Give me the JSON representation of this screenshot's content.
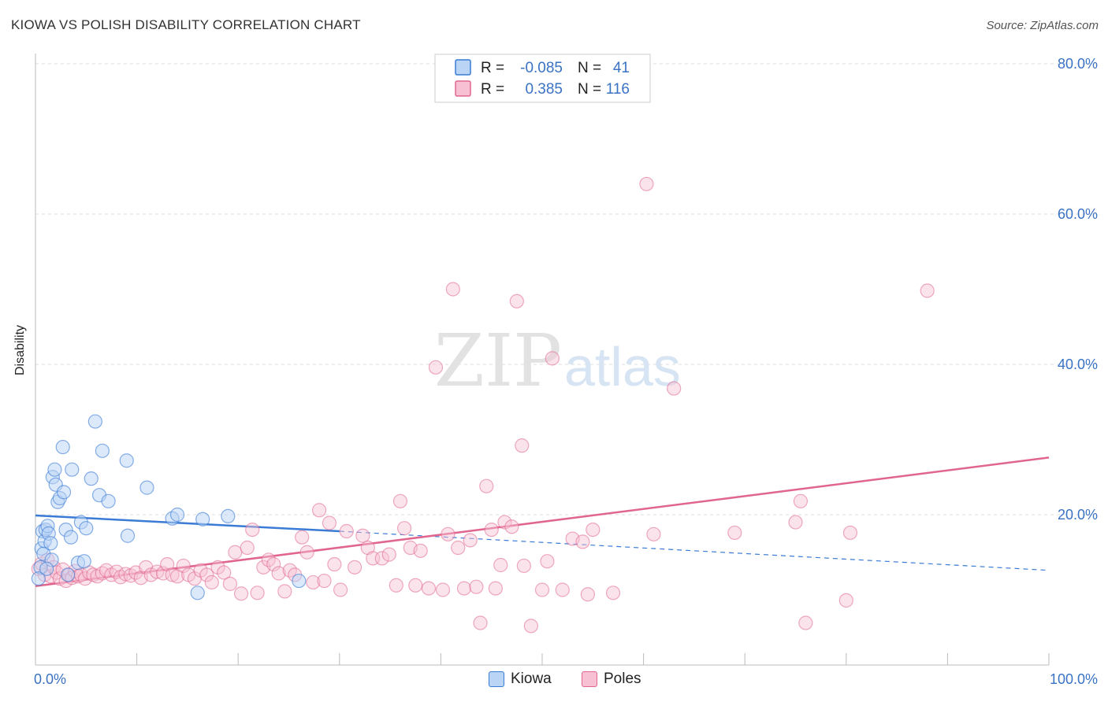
{
  "title": "KIOWA VS POLISH DISABILITY CORRELATION CHART",
  "source": "Source: ZipAtlas.com",
  "watermark": {
    "zip": "ZIP",
    "atlas": "atlas"
  },
  "colors": {
    "kiowa": "#3a7bd5",
    "kiowa_fill": "#b9d4f5",
    "poles": "#e0668f",
    "poles_fill": "#f7c1d3",
    "tick": "#3a72c4",
    "grid": "#dddddd"
  },
  "legend": {
    "rows": [
      {
        "series": "Kiowa",
        "r_label": "R =",
        "r_value": "-0.085",
        "n_label": "N =",
        "n_value": "41"
      },
      {
        "series": "Poles",
        "r_label": "R =",
        "r_value": "0.385",
        "n_label": "N =",
        "n_value": "116"
      }
    ]
  },
  "chart_data": {
    "type": "scatter",
    "title": "KIOWA VS POLISH DISABILITY CORRELATION CHART",
    "xlabel": "",
    "ylabel": "Disability",
    "xlim": [
      0,
      100
    ],
    "ylim": [
      0,
      80
    ],
    "x_tick_labels": [
      "0.0%",
      "100.0%"
    ],
    "y_ticks": [
      20,
      40,
      60,
      80
    ],
    "y_tick_labels": [
      "20.0%",
      "40.0%",
      "60.0%",
      "80.0%"
    ],
    "grid": true,
    "legend_position": "top-center",
    "series": [
      {
        "name": "Kiowa",
        "r": -0.085,
        "n": 41,
        "trend_solid": {
          "x": [
            0,
            30
          ],
          "y": [
            19.9,
            17.8
          ]
        },
        "trend_dashed": {
          "x": [
            30,
            100
          ],
          "y": [
            17.8,
            12.6
          ]
        },
        "points": [
          [
            0.5,
            13.0
          ],
          [
            0.6,
            15.5
          ],
          [
            0.7,
            17.8
          ],
          [
            0.8,
            14.8
          ],
          [
            0.9,
            16.5
          ],
          [
            1.0,
            18.0
          ],
          [
            1.2,
            18.5
          ],
          [
            1.3,
            17.5
          ],
          [
            1.5,
            16.2
          ],
          [
            1.6,
            14.0
          ],
          [
            1.7,
            25.0
          ],
          [
            1.9,
            26.0
          ],
          [
            2.0,
            24.0
          ],
          [
            2.2,
            21.7
          ],
          [
            2.4,
            22.2
          ],
          [
            2.7,
            29.0
          ],
          [
            2.8,
            23.0
          ],
          [
            3.0,
            18.0
          ],
          [
            3.5,
            17.0
          ],
          [
            3.6,
            26.0
          ],
          [
            4.2,
            13.6
          ],
          [
            4.5,
            19.0
          ],
          [
            4.8,
            13.8
          ],
          [
            5.0,
            18.2
          ],
          [
            5.5,
            24.8
          ],
          [
            5.9,
            32.4
          ],
          [
            6.3,
            22.6
          ],
          [
            6.6,
            28.5
          ],
          [
            7.2,
            21.8
          ],
          [
            9.0,
            27.2
          ],
          [
            9.1,
            17.2
          ],
          [
            11.0,
            23.6
          ],
          [
            13.5,
            19.5
          ],
          [
            14.0,
            20.0
          ],
          [
            16.0,
            9.6
          ],
          [
            16.5,
            19.4
          ],
          [
            19.0,
            19.8
          ],
          [
            26.0,
            11.2
          ],
          [
            0.3,
            11.5
          ],
          [
            1.1,
            12.8
          ],
          [
            3.2,
            12.0
          ]
        ]
      },
      {
        "name": "Poles",
        "r": 0.385,
        "n": 116,
        "trend": {
          "x": [
            0,
            100
          ],
          "y": [
            10.5,
            27.6
          ]
        },
        "points": [
          [
            0.3,
            12.8
          ],
          [
            0.6,
            13.5
          ],
          [
            0.9,
            12.0
          ],
          [
            1.2,
            14.0
          ],
          [
            1.5,
            11.8
          ],
          [
            1.8,
            13.0
          ],
          [
            2.1,
            12.3
          ],
          [
            2.4,
            11.5
          ],
          [
            2.7,
            12.7
          ],
          [
            3.0,
            11.2
          ],
          [
            3.3,
            12.0
          ],
          [
            3.6,
            11.6
          ],
          [
            3.9,
            12.5
          ],
          [
            4.2,
            11.8
          ],
          [
            4.5,
            12.0
          ],
          [
            4.9,
            11.5
          ],
          [
            5.3,
            12.3
          ],
          [
            5.7,
            12.0
          ],
          [
            6.1,
            11.8
          ],
          [
            6.6,
            12.2
          ],
          [
            7.0,
            12.6
          ],
          [
            7.5,
            12.0
          ],
          [
            8.0,
            12.4
          ],
          [
            8.4,
            11.7
          ],
          [
            8.9,
            12.1
          ],
          [
            9.4,
            11.9
          ],
          [
            9.9,
            12.3
          ],
          [
            10.4,
            11.6
          ],
          [
            10.9,
            13.0
          ],
          [
            11.4,
            12.0
          ],
          [
            12.0,
            12.4
          ],
          [
            12.6,
            12.2
          ],
          [
            13.0,
            13.4
          ],
          [
            13.5,
            12.0
          ],
          [
            14.0,
            11.8
          ],
          [
            14.6,
            13.2
          ],
          [
            15.1,
            12.0
          ],
          [
            15.7,
            11.5
          ],
          [
            16.3,
            12.6
          ],
          [
            16.9,
            12.0
          ],
          [
            17.4,
            11.0
          ],
          [
            18.0,
            13.0
          ],
          [
            18.6,
            12.3
          ],
          [
            19.2,
            10.8
          ],
          [
            19.7,
            15.0
          ],
          [
            20.3,
            9.5
          ],
          [
            20.9,
            15.6
          ],
          [
            21.4,
            18.0
          ],
          [
            21.9,
            9.6
          ],
          [
            22.5,
            13.0
          ],
          [
            23.0,
            14.0
          ],
          [
            23.5,
            13.4
          ],
          [
            24.0,
            12.2
          ],
          [
            24.6,
            9.8
          ],
          [
            25.1,
            12.6
          ],
          [
            25.6,
            12.0
          ],
          [
            26.3,
            17.0
          ],
          [
            26.8,
            15.0
          ],
          [
            27.4,
            11.0
          ],
          [
            28.0,
            20.6
          ],
          [
            28.5,
            11.2
          ],
          [
            29.0,
            18.9
          ],
          [
            29.5,
            13.4
          ],
          [
            30.1,
            10.0
          ],
          [
            30.7,
            17.8
          ],
          [
            31.5,
            13.0
          ],
          [
            32.3,
            17.2
          ],
          [
            32.8,
            15.6
          ],
          [
            33.3,
            14.2
          ],
          [
            34.2,
            14.2
          ],
          [
            34.9,
            14.7
          ],
          [
            35.6,
            10.6
          ],
          [
            36.0,
            21.8
          ],
          [
            36.4,
            18.2
          ],
          [
            37.0,
            15.6
          ],
          [
            37.5,
            10.6
          ],
          [
            38.0,
            15.2
          ],
          [
            38.8,
            10.2
          ],
          [
            39.5,
            39.6
          ],
          [
            40.2,
            10.0
          ],
          [
            40.7,
            17.4
          ],
          [
            41.2,
            50.0
          ],
          [
            41.7,
            15.6
          ],
          [
            42.3,
            10.2
          ],
          [
            42.9,
            16.6
          ],
          [
            43.5,
            10.4
          ],
          [
            43.9,
            5.6
          ],
          [
            44.5,
            23.8
          ],
          [
            45.0,
            18.0
          ],
          [
            45.4,
            10.2
          ],
          [
            45.9,
            13.3
          ],
          [
            46.3,
            19.0
          ],
          [
            47.0,
            18.4
          ],
          [
            47.5,
            48.4
          ],
          [
            48.0,
            29.2
          ],
          [
            48.2,
            13.2
          ],
          [
            48.9,
            5.2
          ],
          [
            50.0,
            10.0
          ],
          [
            50.5,
            13.8
          ],
          [
            51.0,
            40.8
          ],
          [
            52.0,
            10.0
          ],
          [
            53.0,
            16.8
          ],
          [
            54.0,
            16.4
          ],
          [
            54.5,
            9.4
          ],
          [
            55.0,
            18.0
          ],
          [
            57.0,
            9.6
          ],
          [
            60.3,
            64.0
          ],
          [
            61.0,
            17.4
          ],
          [
            63.0,
            36.8
          ],
          [
            69.0,
            17.6
          ],
          [
            75.0,
            19.0
          ],
          [
            75.5,
            21.8
          ],
          [
            76.0,
            5.6
          ],
          [
            80.0,
            8.6
          ],
          [
            80.4,
            17.6
          ],
          [
            88.0,
            49.8
          ]
        ]
      }
    ]
  }
}
